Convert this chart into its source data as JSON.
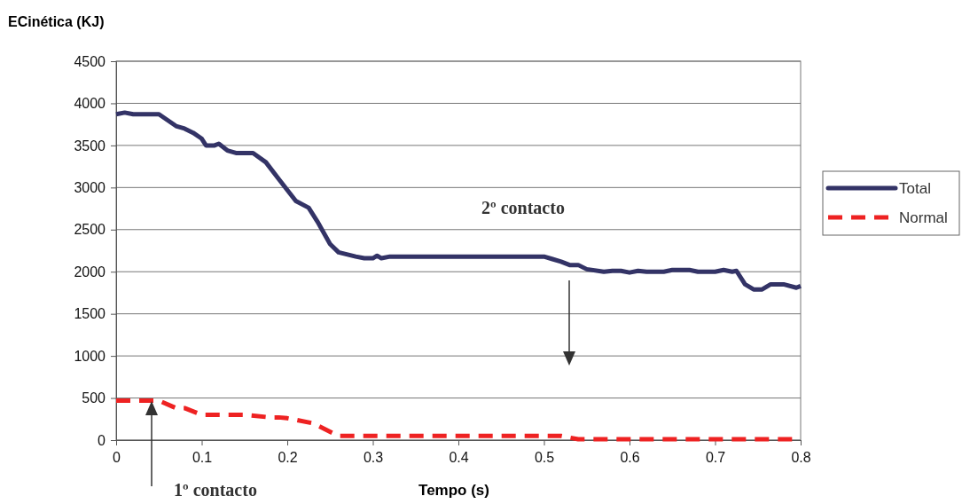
{
  "chart_data": {
    "type": "line",
    "xlabel": "Tempo (s)",
    "ylabel": "ECinética (KJ)",
    "xlim": [
      0,
      0.8
    ],
    "xticks": [
      0,
      0.1,
      0.2,
      0.3,
      0.4,
      0.5,
      0.6,
      0.7,
      0.8
    ],
    "ylim": [
      0,
      4500
    ],
    "yticks": [
      0,
      500,
      1000,
      1500,
      2000,
      2500,
      3000,
      3500,
      4000,
      4500
    ],
    "grid": "y",
    "legend": "right",
    "marker": "none",
    "series": [
      {
        "name": "Total",
        "color": "#333366",
        "line_style": "solid",
        "x": [
          0,
          0.01,
          0.02,
          0.05,
          0.07,
          0.08,
          0.09,
          0.1,
          0.105,
          0.115,
          0.12,
          0.13,
          0.14,
          0.16,
          0.175,
          0.19,
          0.21,
          0.225,
          0.235,
          0.25,
          0.26,
          0.28,
          0.29,
          0.3,
          0.305,
          0.31,
          0.32,
          0.5,
          0.51,
          0.52,
          0.53,
          0.54,
          0.55,
          0.57,
          0.58,
          0.59,
          0.6,
          0.61,
          0.62,
          0.64,
          0.65,
          0.67,
          0.68,
          0.7,
          0.71,
          0.72,
          0.725,
          0.735,
          0.745,
          0.755,
          0.765,
          0.78,
          0.795,
          0.8
        ],
        "values": [
          3870,
          3890,
          3870,
          3870,
          3730,
          3700,
          3650,
          3580,
          3500,
          3500,
          3520,
          3440,
          3410,
          3410,
          3300,
          3100,
          2840,
          2760,
          2600,
          2330,
          2230,
          2180,
          2160,
          2160,
          2190,
          2160,
          2180,
          2180,
          2150,
          2120,
          2080,
          2080,
          2030,
          2000,
          2010,
          2010,
          1990,
          2010,
          2000,
          2000,
          2020,
          2020,
          2000,
          2000,
          2020,
          2000,
          2010,
          1850,
          1790,
          1790,
          1850,
          1850,
          1810,
          1830
        ]
      },
      {
        "name": "Normal",
        "color": "#ee2222",
        "line_style": "dashed",
        "x": [
          0,
          0.03,
          0.05,
          0.07,
          0.08,
          0.1,
          0.15,
          0.18,
          0.19,
          0.2,
          0.23,
          0.26,
          0.5,
          0.52,
          0.54,
          0.8
        ],
        "values": [
          470,
          470,
          470,
          380,
          380,
          300,
          300,
          270,
          270,
          260,
          200,
          50,
          50,
          50,
          10,
          10
        ]
      }
    ],
    "annotations": [
      "1º contacto",
      "2º contacto"
    ]
  }
}
